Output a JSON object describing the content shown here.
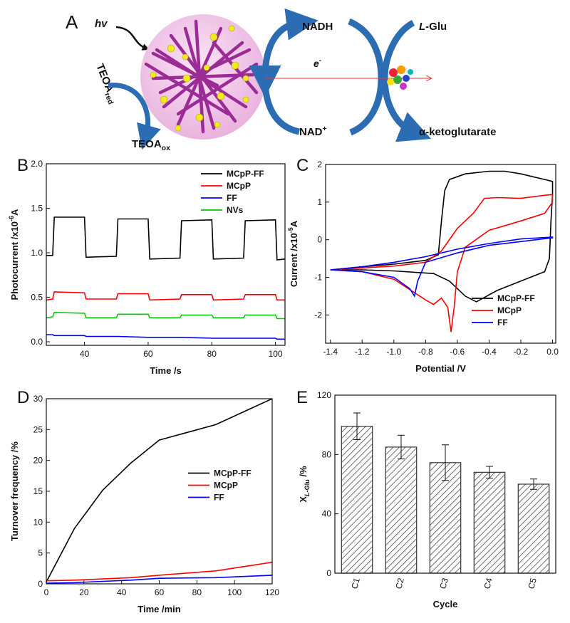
{
  "diagram": {
    "panel": "A",
    "hv": [
      {
        "text": "hv",
        "style": "italic"
      }
    ],
    "teoa_red": [
      {
        "text": "TEOA"
      },
      {
        "text": "red",
        "style": "sub"
      }
    ],
    "teoa_ox": [
      {
        "text": "TEOA"
      },
      {
        "text": "ox",
        "style": "sub"
      }
    ],
    "nadh": [
      {
        "text": "NADH"
      }
    ],
    "nad_plus": [
      {
        "text": "NAD"
      },
      {
        "text": "+",
        "style": "sup"
      }
    ],
    "electron": [
      {
        "text": "e",
        "style": "italic"
      },
      {
        "text": "-",
        "style": "sup"
      }
    ],
    "l_glu": [
      {
        "text": "L",
        "style": "italic"
      },
      {
        "text": "-Glu"
      }
    ],
    "ketoglutarate": [
      {
        "text": "α-ketoglutarate"
      }
    ]
  },
  "chart_data": [
    {
      "type": "line",
      "panel": "B",
      "x_label": [
        {
          "text": "Time /s"
        }
      ],
      "y_label": [
        {
          "text": "Photocurrent /x10"
        },
        {
          "text": "-6",
          "style": "sup"
        },
        {
          "text": "A"
        }
      ],
      "x": [
        28,
        30,
        30.5,
        40,
        40.5,
        50,
        50.5,
        60,
        60.5,
        70,
        70.5,
        80,
        80.5,
        90,
        90.5,
        100,
        100.5,
        103
      ],
      "series": [
        {
          "name": "MCpP-FF",
          "color": "#000000",
          "values": [
            0.97,
            0.97,
            1.4,
            1.4,
            0.95,
            0.96,
            1.38,
            1.38,
            0.93,
            0.94,
            1.36,
            1.37,
            0.93,
            0.94,
            1.36,
            1.37,
            0.92,
            0.93
          ]
        },
        {
          "name": "MCpP",
          "color": "#ff0000",
          "values": [
            0.47,
            0.48,
            0.56,
            0.55,
            0.48,
            0.48,
            0.54,
            0.54,
            0.47,
            0.48,
            0.53,
            0.53,
            0.47,
            0.48,
            0.53,
            0.53,
            0.47,
            0.47
          ]
        },
        {
          "name": "FF",
          "color": "#0000ff",
          "values": [
            0.08,
            0.08,
            0.07,
            0.07,
            0.06,
            0.06,
            0.06,
            0.05,
            0.05,
            0.05,
            0.05,
            0.04,
            0.04,
            0.04,
            0.04,
            0.04,
            0.03,
            0.03
          ]
        },
        {
          "name": "NVs",
          "color": "#00cc00",
          "values": [
            0.27,
            0.28,
            0.33,
            0.32,
            0.27,
            0.27,
            0.31,
            0.31,
            0.27,
            0.27,
            0.3,
            0.3,
            0.27,
            0.27,
            0.3,
            0.3,
            0.26,
            0.26
          ]
        }
      ],
      "xlim": [
        28,
        103
      ],
      "xticks": [
        40,
        60,
        80,
        100
      ],
      "ylim": [
        -0.04,
        2.0
      ],
      "yticks": [
        {
          "value": 0,
          "label": "0.0"
        },
        0.5,
        {
          "value": 1,
          "label": "1.0"
        },
        1.5,
        {
          "value": 2,
          "label": "2.0"
        }
      ],
      "legend": "upper right"
    },
    {
      "type": "line",
      "panel": "C",
      "x_label": [
        {
          "text": "Potential /V"
        }
      ],
      "y_label": [
        {
          "text": "Current /x10"
        },
        {
          "text": "-5",
          "style": "sup"
        },
        {
          "text": "A"
        }
      ],
      "series": [
        {
          "name": "MCpP-FF",
          "color": "#000000",
          "x": [
            -1.4,
            -1.2,
            -1.0,
            -0.8,
            -0.72,
            -0.7,
            -0.68,
            -0.65,
            -0.55,
            -0.4,
            -0.3,
            -0.2,
            -0.05,
            0.0,
            0.0,
            -0.01,
            -0.02,
            -0.05,
            -0.2,
            -0.35,
            -0.48,
            -0.55,
            -0.65,
            -0.75,
            -1.0,
            -1.2,
            -1.4
          ],
          "values": [
            -0.8,
            -0.72,
            -0.65,
            -0.55,
            -0.4,
            0.5,
            1.3,
            1.6,
            1.75,
            1.82,
            1.82,
            1.75,
            1.6,
            1.55,
            1.2,
            0.5,
            -0.5,
            -0.85,
            -1.1,
            -1.35,
            -1.65,
            -1.5,
            -1.1,
            -0.9,
            -0.83,
            -0.8,
            -0.8
          ]
        },
        {
          "name": "MCpP",
          "color": "#ff0000",
          "x": [
            -1.4,
            -1.2,
            -1.0,
            -0.8,
            -0.7,
            -0.6,
            -0.5,
            -0.43,
            -0.35,
            -0.2,
            -0.05,
            0.0,
            0.0,
            -0.05,
            -0.2,
            -0.4,
            -0.55,
            -0.6,
            -0.62,
            -0.64,
            -0.66,
            -0.7,
            -0.75,
            -0.8,
            -1.0,
            -1.2,
            -1.4
          ],
          "values": [
            -0.8,
            -0.75,
            -0.7,
            -0.6,
            -0.3,
            0.3,
            0.7,
            1.1,
            1.12,
            1.1,
            1.18,
            1.2,
            1.0,
            0.7,
            0.5,
            0.25,
            -0.2,
            -0.85,
            -1.8,
            -2.45,
            -1.8,
            -1.55,
            -1.72,
            -1.6,
            -1.05,
            -0.85,
            -0.8
          ]
        },
        {
          "name": "FF",
          "color": "#0000ff",
          "x": [
            -1.4,
            -1.2,
            -1.0,
            -0.8,
            -0.6,
            -0.4,
            -0.2,
            0.0,
            0.0,
            -0.2,
            -0.4,
            -0.6,
            -0.8,
            -0.85,
            -0.87,
            -0.9,
            -1.0,
            -1.2,
            -1.4
          ],
          "values": [
            -0.8,
            -0.72,
            -0.6,
            -0.45,
            -0.25,
            -0.1,
            0.02,
            0.07,
            0.05,
            -0.05,
            -0.15,
            -0.35,
            -0.6,
            -1.1,
            -1.5,
            -1.3,
            -1.0,
            -0.85,
            -0.8
          ]
        }
      ],
      "xlim": [
        -1.43,
        0.02
      ],
      "xticks": [
        -1.4,
        -1.2,
        {
          "value": -1,
          "label": "-1.0"
        },
        -0.8,
        -0.6,
        -0.4,
        -0.2,
        {
          "value": 0,
          "label": "0.0"
        }
      ],
      "ylim": [
        -2.75,
        2.0
      ],
      "yticks": [
        -2,
        -1,
        0,
        1,
        2
      ],
      "legend": "lower right"
    },
    {
      "type": "line",
      "panel": "D",
      "x_label": [
        {
          "text": "Time /min"
        }
      ],
      "y_label": [
        {
          "text": "Turnover frequency /%"
        }
      ],
      "x": [
        0,
        15,
        30,
        45,
        60,
        90,
        120
      ],
      "series": [
        {
          "name": "MCpP-FF",
          "color": "#000000",
          "values": [
            0.3,
            9,
            15.2,
            19.6,
            23.3,
            25.8,
            30
          ]
        },
        {
          "name": "MCpP",
          "color": "#ff0000",
          "values": [
            0.5,
            0.6,
            0.8,
            1.0,
            1.4,
            2.1,
            3.5
          ]
        },
        {
          "name": "FF",
          "color": "#0000ff",
          "values": [
            0.1,
            0.2,
            0.4,
            0.6,
            0.9,
            1.0,
            1.4
          ]
        }
      ],
      "xlim": [
        0,
        120
      ],
      "xticks": [
        0,
        20,
        40,
        60,
        80,
        100,
        120
      ],
      "ylim": [
        0,
        30
      ],
      "yticks": [
        0,
        5,
        10,
        15,
        20,
        25,
        30
      ],
      "legend": "center right"
    },
    {
      "type": "bar",
      "panel": "E",
      "x_label": [
        {
          "text": "Cycle"
        }
      ],
      "y_label": [
        {
          "text": "X"
        },
        {
          "text": "L",
          "style": "sub italic"
        },
        {
          "text": "-Glu",
          "style": "sub"
        },
        {
          "text": " /%"
        }
      ],
      "categories": [
        "C1",
        "C2",
        "C3",
        "C4",
        "C5"
      ],
      "values": [
        99,
        85,
        74.5,
        68,
        60
      ],
      "errors": [
        9,
        8,
        12,
        4,
        3.5
      ],
      "color": "#333333",
      "hatch": true,
      "ylim": [
        0,
        120
      ],
      "yticks": [
        0,
        40,
        80,
        120
      ]
    }
  ]
}
